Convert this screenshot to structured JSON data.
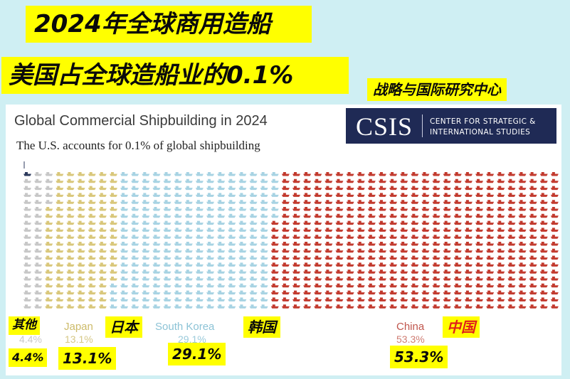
{
  "headline": {
    "line1": "2024年全球商用造船",
    "line2": "美国占全球造船业的0.1%",
    "source_tag": "战略与国际研究中心"
  },
  "logo": {
    "mark": "CSIS",
    "line1": "CENTER FOR STRATEGIC &",
    "line2": "INTERNATIONAL STUDIES"
  },
  "colors": {
    "page_background": "#cfeff3",
    "highlight": "#ffff00",
    "united_states": "#2c3a5c",
    "others": "#c7c7c7",
    "japan": "#d9c77a",
    "south_korea": "#a7d3e3",
    "china": "#c23a2e",
    "china_zh": "#e0201b"
  },
  "chart_data": {
    "type": "waffle",
    "title": "Global Commercial Shipbuilding in 2024",
    "subtitle": "The U.S. accounts for  0.1% of global shipbuilding",
    "units": 1000,
    "icon": "ship-icon",
    "series": [
      {
        "name": "United States",
        "value": 0.1
      },
      {
        "name": "其他",
        "value": 4.4
      },
      {
        "name": "Japan",
        "value": 13.1
      },
      {
        "name": "South Korea",
        "value": 29.1
      },
      {
        "name": "China",
        "value": 53.3
      }
    ],
    "labels": [
      {
        "en": "",
        "pct": "4.4%",
        "zh": "其他",
        "zh_pct": "4.4%"
      },
      {
        "en": "Japan",
        "pct": "13.1%",
        "zh": "日本",
        "zh_pct": "13.1%"
      },
      {
        "en": "South Korea",
        "pct": "29.1%",
        "zh": "韩国",
        "zh_pct": "29.1%"
      },
      {
        "en": "China",
        "pct": "53.3%",
        "zh": "中国",
        "zh_pct": "53.3%"
      }
    ]
  }
}
